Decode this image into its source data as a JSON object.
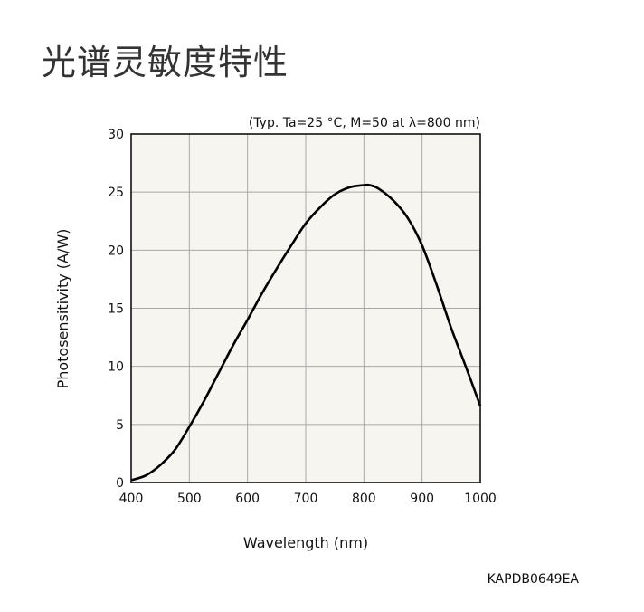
{
  "page": {
    "title": "光谱灵敏度特性",
    "figure_code": "KAPDB0649EA"
  },
  "chart_data": {
    "type": "line",
    "title": "",
    "subtitle": "(Typ. Ta=25 °C, M=50 at λ=800 nm)",
    "xlabel": "Wavelength (nm)",
    "ylabel": "Photosensitivity (A/W)",
    "xlim": [
      400,
      1000
    ],
    "ylim": [
      0,
      30
    ],
    "xticks": [
      400,
      500,
      600,
      700,
      800,
      900,
      1000
    ],
    "yticks": [
      0,
      5,
      10,
      15,
      20,
      25,
      30
    ],
    "grid": true,
    "colors": {
      "plot_background": "#f6f5ef",
      "grid": "#a8a8a8",
      "line": "#000000"
    },
    "series": [
      {
        "x": [
          400,
          425,
          450,
          475,
          500,
          525,
          550,
          575,
          600,
          625,
          650,
          675,
          700,
          725,
          750,
          775,
          800,
          810,
          825,
          850,
          875,
          900,
          925,
          950,
          975,
          1000
        ],
        "y": [
          0.2,
          0.6,
          1.5,
          2.8,
          4.8,
          7.0,
          9.4,
          11.8,
          14.0,
          16.3,
          18.4,
          20.4,
          22.3,
          23.7,
          24.8,
          25.4,
          25.6,
          25.6,
          25.3,
          24.3,
          22.8,
          20.4,
          17.0,
          13.3,
          10.0,
          6.6
        ]
      }
    ]
  }
}
